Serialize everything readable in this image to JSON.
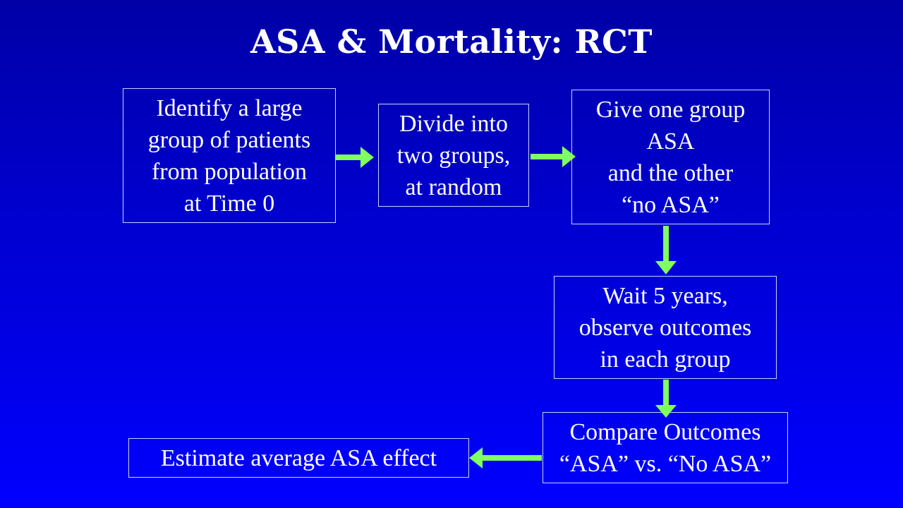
{
  "slide": {
    "title": "ASA & Mortality: RCT"
  },
  "colors": {
    "background_top": "#0000a6",
    "background_bottom": "#0000ff",
    "text": "#ffffff",
    "arrow": "#80ff60"
  },
  "steps": {
    "identify": "Identify a large\ngroup of patients\nfrom population\nat Time 0",
    "divide": "Divide into\ntwo groups,\nat random",
    "treat": "Give one group\nASA\nand the other\n“no ASA”",
    "wait": "Wait 5 years,\nobserve outcomes\nin each group",
    "compare": "Compare Outcomes\n“ASA” vs. “No ASA”",
    "estimate": "Estimate average ASA effect"
  }
}
